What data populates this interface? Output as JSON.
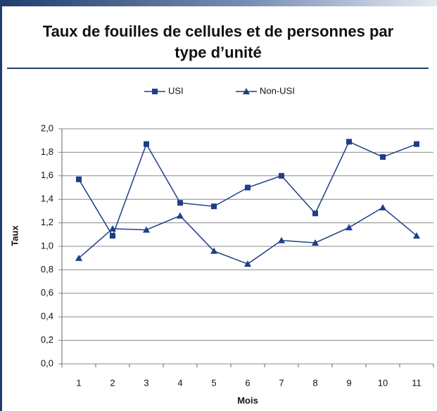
{
  "chart_data": {
    "type": "line",
    "title": "Taux de fouilles de cellules et de personnes par type d’unité",
    "x_label": "Mois",
    "y_label": "Taux",
    "categories": [
      "1",
      "2",
      "3",
      "4",
      "5",
      "6",
      "7",
      "8",
      "9",
      "10",
      "11"
    ],
    "series": [
      {
        "name": "USI",
        "color": "#1f3d8a",
        "marker": "square",
        "values": [
          1.57,
          1.09,
          1.87,
          1.37,
          1.34,
          1.5,
          1.6,
          1.28,
          1.89,
          1.76,
          1.87
        ]
      },
      {
        "name": "Non-USI",
        "color": "#1f3d8a",
        "marker": "triangle",
        "values": [
          0.9,
          1.15,
          1.14,
          1.26,
          0.96,
          0.85,
          1.05,
          1.03,
          1.16,
          1.33,
          1.09
        ]
      }
    ],
    "ylim": [
      0,
      2
    ],
    "yticks": [
      {
        "value": 0,
        "label": "0,0"
      },
      {
        "value": 0.2,
        "label": "0,2"
      },
      {
        "value": 0.4,
        "label": "0,4"
      },
      {
        "value": 0.6,
        "label": "0,6"
      },
      {
        "value": 0.8,
        "label": "0,8"
      },
      {
        "value": 1.0,
        "label": "1,0"
      },
      {
        "value": 1.2,
        "label": "1,2"
      },
      {
        "value": 1.4,
        "label": "1,4"
      },
      {
        "value": 1.6,
        "label": "1,6"
      },
      {
        "value": 1.8,
        "label": "1,8"
      },
      {
        "value": 2.0,
        "label": "2,0"
      }
    ],
    "grid": true,
    "legend": "top"
  }
}
